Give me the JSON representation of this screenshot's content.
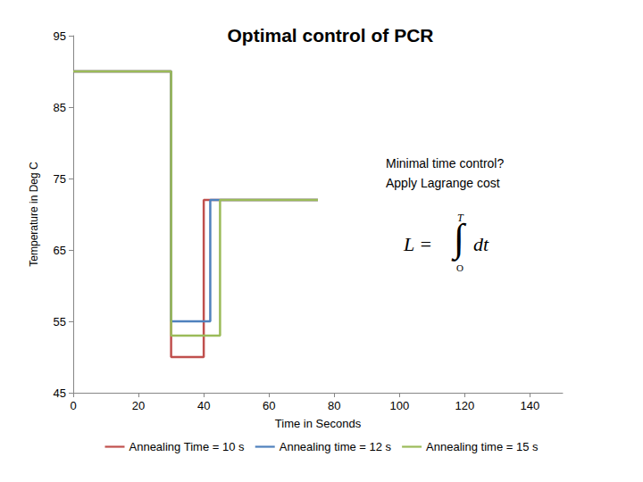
{
  "chart_data": {
    "type": "line",
    "title": "Optimal control of PCR",
    "x_label": "Time in Seconds",
    "y_label": "Temperature in Deg C",
    "xlim": [
      0,
      150
    ],
    "xticks": [
      0,
      20,
      40,
      60,
      80,
      100,
      120,
      140
    ],
    "ylim": [
      45,
      95
    ],
    "yticks": [
      45,
      55,
      65,
      75,
      85,
      95
    ],
    "grid": false,
    "legend": "bottom",
    "line_style": "step",
    "annotations": [
      "Minimal time control?\nApply Lagrange cost"
    ],
    "formula": {
      "left": "L =",
      "integral": "∫",
      "upper": "T",
      "lower": "O",
      "right": "dt"
    },
    "series": [
      {
        "name": "Annealing Time = 10 s",
        "color": "#c0504d",
        "x": [
          0,
          30,
          30,
          40,
          40,
          75
        ],
        "values": [
          90,
          90,
          50,
          50,
          72,
          72
        ]
      },
      {
        "name": "Annealing time = 12 s",
        "color": "#4f81bd",
        "x": [
          0,
          30,
          30,
          42,
          42,
          75
        ],
        "values": [
          90,
          90,
          55,
          55,
          72,
          72
        ]
      },
      {
        "name": "Annealing time = 15 s",
        "color": "#9bbb59",
        "x": [
          0,
          30,
          30,
          45,
          45,
          75
        ],
        "values": [
          90,
          90,
          53,
          53,
          72,
          72
        ]
      }
    ]
  }
}
